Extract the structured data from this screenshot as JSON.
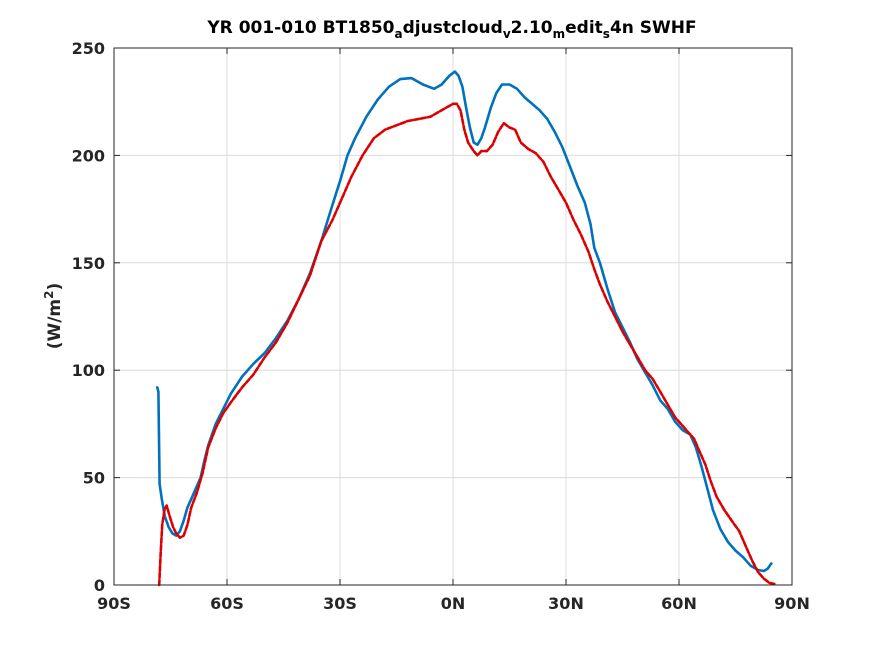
{
  "chart_data": {
    "type": "line",
    "title": {
      "segments": [
        {
          "text": "YR 001-010 BT1850",
          "sub": false
        },
        {
          "text": "a",
          "sub": true
        },
        {
          "text": "djustcloud",
          "sub": false
        },
        {
          "text": "v",
          "sub": true
        },
        {
          "text": "2.10",
          "sub": false
        },
        {
          "text": "m",
          "sub": true
        },
        {
          "text": "edit",
          "sub": false
        },
        {
          "text": "s",
          "sub": true
        },
        {
          "text": "4n    SWHF",
          "sub": false
        }
      ]
    },
    "ylabel": {
      "prefix": "(W/m",
      "sup": "2",
      "suffix": ")"
    },
    "xlim": [
      -90,
      90
    ],
    "ylim": [
      0,
      250
    ],
    "xticks": [
      -90,
      -60,
      -30,
      0,
      30,
      60,
      90
    ],
    "xtick_labels": [
      "90S",
      "60S",
      "30S",
      "0N",
      "30N",
      "60N",
      "90N"
    ],
    "yticks": [
      0,
      50,
      100,
      150,
      200,
      250
    ],
    "ytick_labels": [
      "0",
      "50",
      "100",
      "150",
      "200",
      "250"
    ],
    "grid": true,
    "series": [
      {
        "color": "#0072bd",
        "style": "solid",
        "points": [
          [
            -78.5,
            92
          ],
          [
            -78.2,
            90
          ],
          [
            -77.9,
            47
          ],
          [
            -77.3,
            40
          ],
          [
            -76.5,
            32
          ],
          [
            -75.5,
            27
          ],
          [
            -74.5,
            24
          ],
          [
            -73.5,
            23
          ],
          [
            -72.5,
            25
          ],
          [
            -71.5,
            30
          ],
          [
            -70.5,
            36
          ],
          [
            -69,
            42
          ],
          [
            -67,
            50
          ],
          [
            -66,
            58
          ],
          [
            -65,
            65
          ],
          [
            -63,
            75
          ],
          [
            -61,
            82
          ],
          [
            -59,
            89
          ],
          [
            -56,
            97
          ],
          [
            -53,
            103
          ],
          [
            -50,
            108
          ],
          [
            -47,
            115
          ],
          [
            -44,
            123
          ],
          [
            -41,
            133
          ],
          [
            -38,
            145
          ],
          [
            -35,
            160
          ],
          [
            -32,
            177
          ],
          [
            -30,
            188
          ],
          [
            -28,
            200
          ],
          [
            -26,
            208
          ],
          [
            -23,
            218
          ],
          [
            -20,
            226
          ],
          [
            -17,
            232
          ],
          [
            -14,
            235.5
          ],
          [
            -11,
            236
          ],
          [
            -8,
            233
          ],
          [
            -5,
            231
          ],
          [
            -3,
            233
          ],
          [
            -1,
            237
          ],
          [
            0.5,
            239
          ],
          [
            1.5,
            237
          ],
          [
            2.5,
            232
          ],
          [
            3.5,
            222
          ],
          [
            4.5,
            213
          ],
          [
            5.5,
            206
          ],
          [
            6.5,
            205
          ],
          [
            7.5,
            208
          ],
          [
            8.5,
            213
          ],
          [
            10,
            222
          ],
          [
            11.5,
            229
          ],
          [
            13,
            233
          ],
          [
            15,
            233
          ],
          [
            17,
            231
          ],
          [
            19,
            227
          ],
          [
            21,
            224
          ],
          [
            23,
            221
          ],
          [
            25,
            217
          ],
          [
            27,
            211
          ],
          [
            29,
            204
          ],
          [
            31,
            195
          ],
          [
            33,
            186
          ],
          [
            35,
            178
          ],
          [
            36.5,
            168
          ],
          [
            37.5,
            157
          ],
          [
            39,
            150
          ],
          [
            41,
            138
          ],
          [
            43,
            127
          ],
          [
            45,
            120
          ],
          [
            47,
            113
          ],
          [
            49,
            105
          ],
          [
            51,
            99
          ],
          [
            53,
            93
          ],
          [
            55,
            86
          ],
          [
            57,
            82
          ],
          [
            59,
            76
          ],
          [
            61,
            72
          ],
          [
            63,
            70
          ],
          [
            64.5,
            64
          ],
          [
            66,
            55
          ],
          [
            67.5,
            45
          ],
          [
            69,
            35
          ],
          [
            71,
            26
          ],
          [
            73,
            20
          ],
          [
            75,
            16
          ],
          [
            77,
            13
          ],
          [
            79,
            9
          ],
          [
            81,
            7
          ],
          [
            82.5,
            6.5
          ],
          [
            83.5,
            7.5
          ],
          [
            84.5,
            10
          ]
        ]
      },
      {
        "color": "#dd0000",
        "style": "dashed",
        "points": [
          [
            -78,
            0
          ],
          [
            -77.6,
            15
          ],
          [
            -77.2,
            28
          ],
          [
            -76.6,
            35
          ],
          [
            -76,
            37
          ],
          [
            -75.2,
            32
          ],
          [
            -74.3,
            27
          ],
          [
            -73.5,
            24
          ],
          [
            -72.5,
            22
          ],
          [
            -71.5,
            23
          ],
          [
            -70.5,
            28
          ],
          [
            -69.5,
            36
          ],
          [
            -68,
            43
          ],
          [
            -66.5,
            52
          ],
          [
            -65,
            64
          ],
          [
            -63,
            73
          ],
          [
            -61,
            80
          ],
          [
            -59,
            85
          ],
          [
            -56,
            92
          ],
          [
            -53,
            98
          ],
          [
            -50,
            106
          ],
          [
            -47,
            113
          ],
          [
            -44,
            122
          ],
          [
            -41,
            133
          ],
          [
            -38,
            144
          ],
          [
            -35,
            160
          ],
          [
            -32,
            170
          ],
          [
            -29,
            182
          ],
          [
            -27,
            190
          ],
          [
            -24,
            200
          ],
          [
            -21,
            208
          ],
          [
            -18,
            212
          ],
          [
            -15,
            214
          ],
          [
            -12,
            216
          ],
          [
            -9,
            217
          ],
          [
            -6,
            218
          ],
          [
            -4,
            220
          ],
          [
            -2,
            222
          ],
          [
            0,
            224
          ],
          [
            1,
            224
          ],
          [
            2,
            221
          ],
          [
            3,
            212
          ],
          [
            4,
            206
          ],
          [
            5.5,
            202
          ],
          [
            6.5,
            200
          ],
          [
            7.5,
            202
          ],
          [
            9,
            202
          ],
          [
            10.5,
            205
          ],
          [
            12,
            211
          ],
          [
            13.5,
            215
          ],
          [
            15,
            213
          ],
          [
            16.5,
            212
          ],
          [
            18,
            206
          ],
          [
            20,
            203
          ],
          [
            22,
            201
          ],
          [
            24,
            197
          ],
          [
            26,
            190
          ],
          [
            28,
            184
          ],
          [
            30,
            178
          ],
          [
            32,
            170
          ],
          [
            34,
            163
          ],
          [
            36,
            155
          ],
          [
            37.5,
            147
          ],
          [
            39,
            140
          ],
          [
            41,
            132
          ],
          [
            43,
            125
          ],
          [
            45,
            118
          ],
          [
            47,
            112
          ],
          [
            49,
            106
          ],
          [
            51,
            100
          ],
          [
            53,
            96
          ],
          [
            55,
            90
          ],
          [
            57,
            84
          ],
          [
            59,
            78
          ],
          [
            61,
            74
          ],
          [
            62.5,
            71
          ],
          [
            64,
            68
          ],
          [
            65.5,
            62
          ],
          [
            67,
            56
          ],
          [
            68.5,
            48
          ],
          [
            70,
            41
          ],
          [
            72,
            35
          ],
          [
            74,
            30
          ],
          [
            76,
            25
          ],
          [
            78,
            17
          ],
          [
            79.5,
            11
          ],
          [
            81,
            6
          ],
          [
            82.5,
            3
          ],
          [
            84,
            1
          ],
          [
            85.3,
            0.5
          ]
        ]
      }
    ]
  }
}
